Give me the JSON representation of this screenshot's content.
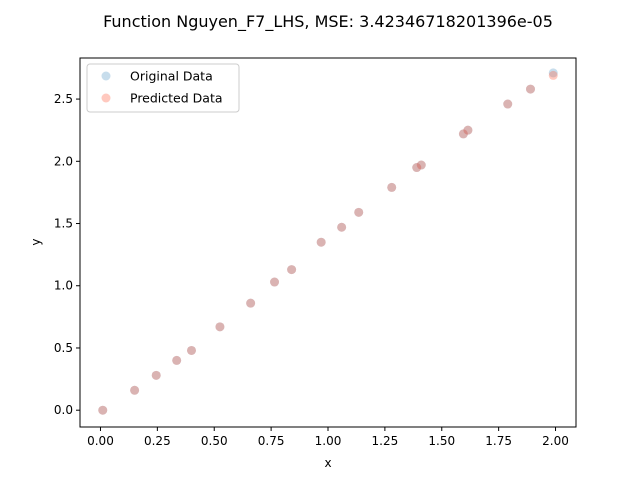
{
  "chart_data": {
    "type": "scatter",
    "title": "Function Nguyen_F7_LHS, MSE: 3.42346718201396e-05",
    "xlabel": "x",
    "ylabel": "y",
    "xlim": [
      -0.09,
      2.09
    ],
    "ylim": [
      -0.135,
      2.83
    ],
    "xticks": [
      0.0,
      0.25,
      0.5,
      0.75,
      1.0,
      1.25,
      1.5,
      1.75,
      2.0
    ],
    "xtick_labels": [
      "0.00",
      "0.25",
      "0.50",
      "0.75",
      "1.00",
      "1.25",
      "1.50",
      "1.75",
      "2.00"
    ],
    "yticks": [
      0.0,
      0.5,
      1.0,
      1.5,
      2.0,
      2.5
    ],
    "ytick_labels": [
      "0.0",
      "0.5",
      "1.0",
      "1.5",
      "2.0",
      "2.5"
    ],
    "grid": false,
    "legend_position": "top-left",
    "series": [
      {
        "name": "Original Data",
        "color": "#1f77b4",
        "alpha": 0.25,
        "x": [
          0.01,
          0.15,
          0.245,
          0.335,
          0.4,
          0.525,
          0.66,
          0.765,
          0.84,
          0.97,
          1.06,
          1.135,
          1.28,
          1.39,
          1.41,
          1.595,
          1.615,
          1.79,
          1.89,
          1.99
        ],
        "y": [
          0.0,
          0.16,
          0.28,
          0.4,
          0.48,
          0.67,
          0.86,
          1.03,
          1.13,
          1.35,
          1.47,
          1.59,
          1.79,
          1.95,
          1.97,
          2.22,
          2.25,
          2.46,
          2.58,
          2.71
        ]
      },
      {
        "name": "Predicted Data",
        "color": "#ff6347",
        "alpha": 0.35,
        "x": [
          0.01,
          0.15,
          0.245,
          0.335,
          0.4,
          0.525,
          0.66,
          0.765,
          0.84,
          0.97,
          1.06,
          1.135,
          1.28,
          1.39,
          1.41,
          1.595,
          1.615,
          1.79,
          1.89,
          1.99
        ],
        "y": [
          0.0,
          0.16,
          0.28,
          0.4,
          0.48,
          0.67,
          0.86,
          1.03,
          1.13,
          1.35,
          1.47,
          1.59,
          1.79,
          1.95,
          1.97,
          2.22,
          2.25,
          2.46,
          2.58,
          2.69
        ]
      }
    ]
  }
}
